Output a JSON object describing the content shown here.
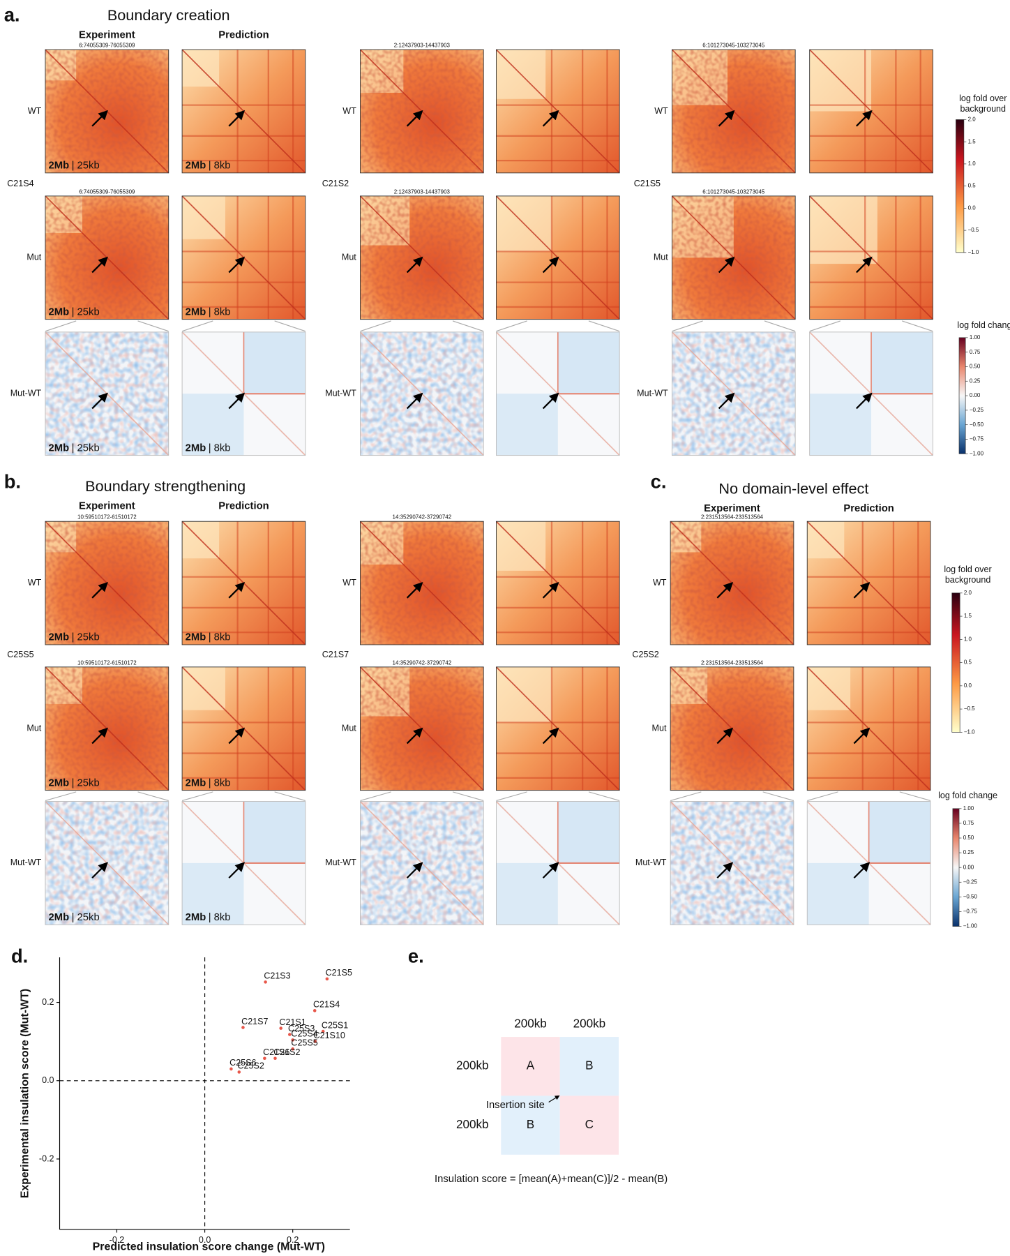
{
  "panels": {
    "a": {
      "label": "a.",
      "title": "Boundary creation",
      "columns": [
        "Experiment",
        "Prediction"
      ],
      "rows": [
        "WT",
        "Mut",
        "Mut-WT"
      ],
      "scale_experiment": [
        "2Mb",
        "| 25kb"
      ],
      "scale_prediction": [
        "2Mb",
        "| 8kb"
      ],
      "groups": [
        {
          "sample": "C21S4",
          "region": "6:74055309-76055309"
        },
        {
          "sample": "C21S2",
          "region": "2:12437903-14437903"
        },
        {
          "sample": "C21S5",
          "region": "6:101273045-103273045"
        }
      ]
    },
    "b": {
      "label": "b.",
      "title": "Boundary strengthening",
      "columns": [
        "Experiment",
        "Prediction"
      ],
      "rows": [
        "WT",
        "Mut",
        "Mut-WT"
      ],
      "scale_experiment": [
        "2Mb",
        "| 25kb"
      ],
      "scale_prediction": [
        "2Mb",
        "| 8kb"
      ],
      "groups": [
        {
          "sample": "C25S5",
          "region": "10:59510172-61510172"
        },
        {
          "sample": "C21S7",
          "region": "14:35290742-37290742"
        }
      ]
    },
    "c": {
      "label": "c.",
      "title": "No domain-level effect",
      "columns": [
        "Experiment",
        "Prediction"
      ],
      "rows": [
        "WT",
        "Mut",
        "Mut-WT"
      ],
      "groups": [
        {
          "sample": "C25S2",
          "region": "2:231513564-233513564"
        }
      ]
    },
    "d": {
      "label": "d."
    },
    "e": {
      "label": "e.",
      "col_sizes": [
        "200kb",
        "200kb"
      ],
      "row_sizes": [
        "200kb",
        "200kb"
      ],
      "cells": [
        "A",
        "B",
        "B",
        "C"
      ],
      "insertion": "Insertion site",
      "formula": "Insulation score = [mean(A)+mean(C)]/2 - mean(B)"
    }
  },
  "colorbars": {
    "a": [
      {
        "title": [
          "log fold over",
          "background"
        ],
        "lim": [
          -1,
          2
        ],
        "ticks": [
          {
            "value": 2,
            "label": "2.0"
          },
          {
            "value": 1.5,
            "label": "1.5"
          },
          {
            "value": 1,
            "label": "1.0"
          },
          {
            "value": 0.5,
            "label": "0.5"
          },
          {
            "value": 0,
            "label": "0.0"
          },
          {
            "value": -0.5,
            "label": "−0.5"
          },
          {
            "value": -1,
            "label": "−1.0"
          }
        ]
      },
      {
        "title": [
          "log fold change"
        ],
        "lim": [
          -1,
          1
        ],
        "ticks": [
          {
            "value": 1,
            "label": "1.00"
          },
          {
            "value": 0.75,
            "label": "0.75"
          },
          {
            "value": 0.5,
            "label": "0.50"
          },
          {
            "value": 0.25,
            "label": "0.25"
          },
          {
            "value": 0,
            "label": "0.00"
          },
          {
            "value": -0.25,
            "label": "−0.25"
          },
          {
            "value": -0.5,
            "label": "−0.50"
          },
          {
            "value": -0.75,
            "label": "−0.75"
          },
          {
            "value": -1,
            "label": "−1.00"
          }
        ]
      }
    ],
    "c": [
      {
        "title": [
          "log fold over",
          "background"
        ],
        "lim": [
          -1,
          2
        ],
        "ticks": [
          {
            "value": 2,
            "label": "2.0"
          },
          {
            "value": 1.5,
            "label": "1.5"
          },
          {
            "value": 1,
            "label": "1.0"
          },
          {
            "value": 0.5,
            "label": "0.5"
          },
          {
            "value": 0,
            "label": "0.0"
          },
          {
            "value": -0.5,
            "label": "−0.5"
          },
          {
            "value": -1,
            "label": "−1.0"
          }
        ]
      },
      {
        "title": [
          "log fold change"
        ],
        "lim": [
          -1,
          1
        ],
        "ticks": [
          {
            "value": 1,
            "label": "1.00"
          },
          {
            "value": 0.75,
            "label": "0.75"
          },
          {
            "value": 0.5,
            "label": "0.50"
          },
          {
            "value": 0.25,
            "label": "0.25"
          },
          {
            "value": 0,
            "label": "0.00"
          },
          {
            "value": -0.25,
            "label": "−0.25"
          },
          {
            "value": -0.5,
            "label": "−0.50"
          },
          {
            "value": -0.75,
            "label": "−0.75"
          },
          {
            "value": -1,
            "label": "−1.00"
          }
        ]
      }
    ]
  },
  "chart_data": {
    "type": "scatter",
    "xlabel": "Predicted insulation score change (Mut-WT)",
    "ylabel": "Experimental insulation score (Mut-WT)",
    "labels": [
      "C21S5",
      "C21S3",
      "C21S4",
      "C21S7",
      "C21S1",
      "C25S1",
      "C25S3",
      "C25S4",
      "C21S10",
      "C25S5",
      "C21S6",
      "C21S2",
      "C25S6",
      "C25S2"
    ],
    "x": [
      0.278,
      0.138,
      0.25,
      0.087,
      0.173,
      0.269,
      0.193,
      0.2,
      0.251,
      0.2,
      0.136,
      0.16,
      0.06,
      0.078
    ],
    "values": [
      0.26,
      0.252,
      0.179,
      0.136,
      0.134,
      0.126,
      0.118,
      0.104,
      0.1,
      0.081,
      0.057,
      0.057,
      0.03,
      0.022
    ],
    "color": "#e8574a",
    "xlim": [
      -0.33,
      0.33
    ],
    "ylim": [
      -0.38,
      0.315
    ],
    "xticks": [
      {
        "value": -0.2,
        "label": "-0.2"
      },
      {
        "value": 0,
        "label": "0.0"
      },
      {
        "value": 0.2,
        "label": "0.2"
      }
    ],
    "yticks": [
      {
        "value": -0.2,
        "label": "-0.2"
      },
      {
        "value": 0,
        "label": "0.0"
      },
      {
        "value": 0.2,
        "label": "0.2"
      }
    ]
  }
}
